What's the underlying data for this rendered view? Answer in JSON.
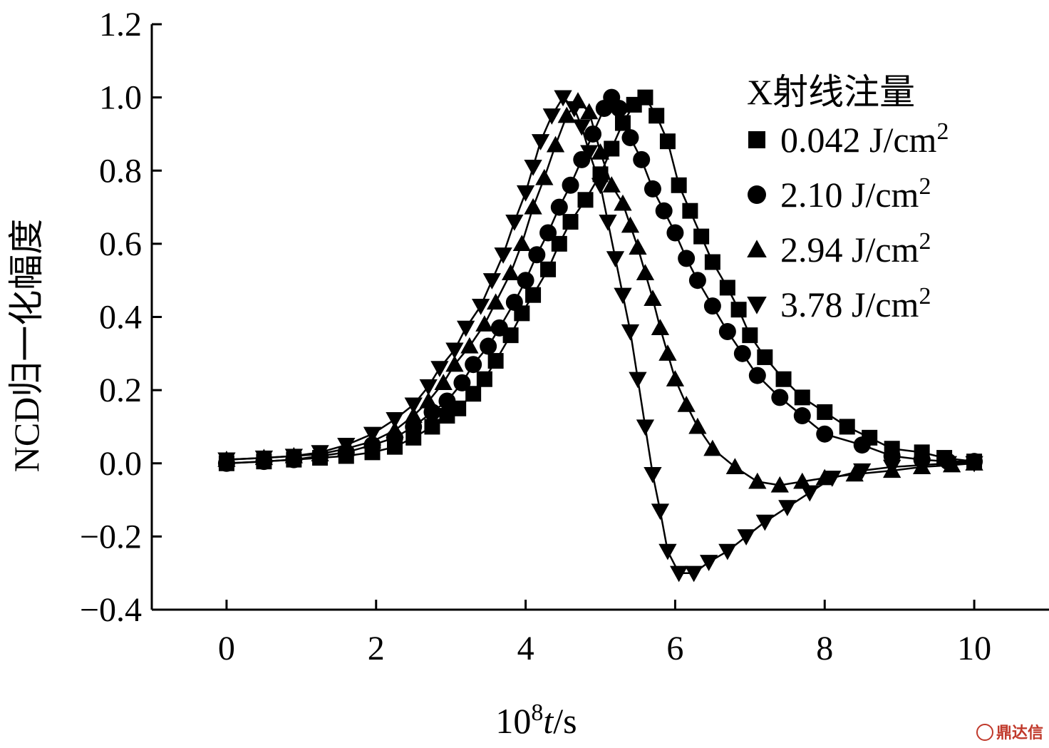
{
  "chart_data": {
    "type": "line",
    "xlabel": {
      "prefix": "10",
      "sup": "8",
      "var": "t",
      "suffix": "/s"
    },
    "ylabel": "NCD归一化幅度",
    "xlim": [
      -1,
      11
    ],
    "ylim": [
      -0.4,
      1.2
    ],
    "xticks": [
      0,
      2,
      4,
      6,
      8,
      10
    ],
    "xtick_labels": [
      "0",
      "2",
      "4",
      "6",
      "8",
      "10"
    ],
    "yticks": [
      -0.4,
      -0.2,
      0.0,
      0.2,
      0.4,
      0.6,
      0.8,
      1.0,
      1.2
    ],
    "ytick_labels": [
      "−0.4",
      "−0.2",
      "0.0",
      "0.2",
      "0.4",
      "0.6",
      "0.8",
      "1.0",
      "1.2"
    ],
    "legend_title": "X射线注量",
    "legend_position": "top-right",
    "series": [
      {
        "name": "0.042 J/cm²",
        "label": "0.042 J/cm",
        "label_sup": "2",
        "marker": "square",
        "x": [
          0,
          0.5,
          0.9,
          1.25,
          1.6,
          1.95,
          2.25,
          2.5,
          2.75,
          2.95,
          3.1,
          3.3,
          3.45,
          3.6,
          3.8,
          3.95,
          4.1,
          4.3,
          4.45,
          4.6,
          4.8,
          5.0,
          5.15,
          5.3,
          5.45,
          5.6,
          5.75,
          5.9,
          6.05,
          6.2,
          6.35,
          6.5,
          6.7,
          6.85,
          7.0,
          7.2,
          7.45,
          7.7,
          8.0,
          8.3,
          8.6,
          8.9,
          9.3,
          9.6,
          10.0
        ],
        "y": [
          0.0,
          0.005,
          0.01,
          0.015,
          0.02,
          0.03,
          0.045,
          0.07,
          0.1,
          0.13,
          0.15,
          0.19,
          0.23,
          0.28,
          0.35,
          0.41,
          0.46,
          0.53,
          0.6,
          0.66,
          0.72,
          0.79,
          0.86,
          0.93,
          0.98,
          1.0,
          0.95,
          0.88,
          0.76,
          0.69,
          0.62,
          0.55,
          0.48,
          0.42,
          0.35,
          0.29,
          0.23,
          0.18,
          0.14,
          0.1,
          0.07,
          0.04,
          0.03,
          0.015,
          0.005
        ]
      },
      {
        "name": "2.10 J/cm²",
        "label": "2.10 J/cm",
        "label_sup": "2",
        "marker": "circle",
        "x": [
          0,
          0.5,
          0.9,
          1.25,
          1.6,
          1.95,
          2.25,
          2.5,
          2.75,
          2.95,
          3.15,
          3.3,
          3.5,
          3.65,
          3.85,
          4.0,
          4.15,
          4.3,
          4.45,
          4.6,
          4.75,
          4.9,
          5.05,
          5.15,
          5.25,
          5.4,
          5.55,
          5.7,
          5.85,
          6.0,
          6.15,
          6.3,
          6.5,
          6.7,
          6.9,
          7.1,
          7.4,
          7.7,
          8.0,
          8.5,
          8.9,
          9.3,
          9.65,
          10.0
        ],
        "y": [
          0.0,
          0.005,
          0.01,
          0.02,
          0.03,
          0.05,
          0.07,
          0.1,
          0.14,
          0.17,
          0.22,
          0.27,
          0.32,
          0.37,
          0.44,
          0.5,
          0.57,
          0.63,
          0.7,
          0.76,
          0.83,
          0.9,
          0.97,
          1.0,
          0.97,
          0.89,
          0.83,
          0.75,
          0.69,
          0.63,
          0.56,
          0.5,
          0.43,
          0.36,
          0.3,
          0.24,
          0.18,
          0.13,
          0.08,
          0.05,
          0.02,
          0.01,
          0.005,
          0.005
        ]
      },
      {
        "name": "2.94 J/cm²",
        "label": "2.94 J/cm",
        "label_sup": "2",
        "marker": "triangle-up",
        "x": [
          0,
          0.5,
          0.9,
          1.25,
          1.6,
          1.95,
          2.25,
          2.5,
          2.7,
          2.9,
          3.05,
          3.25,
          3.45,
          3.6,
          3.8,
          3.95,
          4.1,
          4.25,
          4.4,
          4.55,
          4.7,
          4.85,
          5.0,
          5.15,
          5.3,
          5.4,
          5.5,
          5.6,
          5.7,
          5.8,
          5.9,
          6.0,
          6.15,
          6.3,
          6.5,
          6.8,
          7.1,
          7.4,
          7.7,
          8.0,
          8.4,
          8.9,
          9.3,
          9.7,
          10.0
        ],
        "y": [
          0.01,
          0.015,
          0.02,
          0.025,
          0.04,
          0.06,
          0.09,
          0.13,
          0.17,
          0.22,
          0.27,
          0.32,
          0.38,
          0.44,
          0.52,
          0.6,
          0.7,
          0.78,
          0.87,
          0.95,
          0.99,
          0.96,
          0.85,
          0.76,
          0.71,
          0.65,
          0.59,
          0.52,
          0.45,
          0.37,
          0.3,
          0.23,
          0.16,
          0.1,
          0.04,
          -0.01,
          -0.05,
          -0.06,
          -0.05,
          -0.04,
          -0.03,
          -0.02,
          -0.01,
          -0.005,
          0.0
        ]
      },
      {
        "name": "3.78 J/cm²",
        "label": "3.78 J/cm",
        "label_sup": "2",
        "marker": "triangle-down",
        "x": [
          0,
          0.5,
          0.9,
          1.25,
          1.6,
          1.95,
          2.25,
          2.5,
          2.7,
          2.85,
          3.05,
          3.2,
          3.4,
          3.55,
          3.7,
          3.85,
          4.0,
          4.1,
          4.2,
          4.35,
          4.5,
          4.65,
          4.75,
          4.85,
          5.0,
          5.1,
          5.2,
          5.3,
          5.4,
          5.5,
          5.6,
          5.7,
          5.8,
          5.9,
          6.05,
          6.25,
          6.45,
          6.7,
          6.95,
          7.2,
          7.5,
          7.8,
          8.1,
          8.5,
          8.9,
          9.3,
          9.65,
          10.0
        ],
        "y": [
          0.01,
          0.015,
          0.02,
          0.03,
          0.05,
          0.08,
          0.12,
          0.16,
          0.21,
          0.26,
          0.31,
          0.37,
          0.43,
          0.5,
          0.57,
          0.66,
          0.74,
          0.81,
          0.88,
          0.95,
          1.0,
          0.97,
          0.92,
          0.85,
          0.76,
          0.66,
          0.56,
          0.46,
          0.36,
          0.23,
          0.1,
          -0.03,
          -0.13,
          -0.24,
          -0.3,
          -0.3,
          -0.27,
          -0.24,
          -0.2,
          -0.16,
          -0.12,
          -0.08,
          -0.04,
          -0.02,
          -0.01,
          -0.005,
          0.0,
          0.0
        ]
      }
    ]
  },
  "watermark": "鼎达信"
}
